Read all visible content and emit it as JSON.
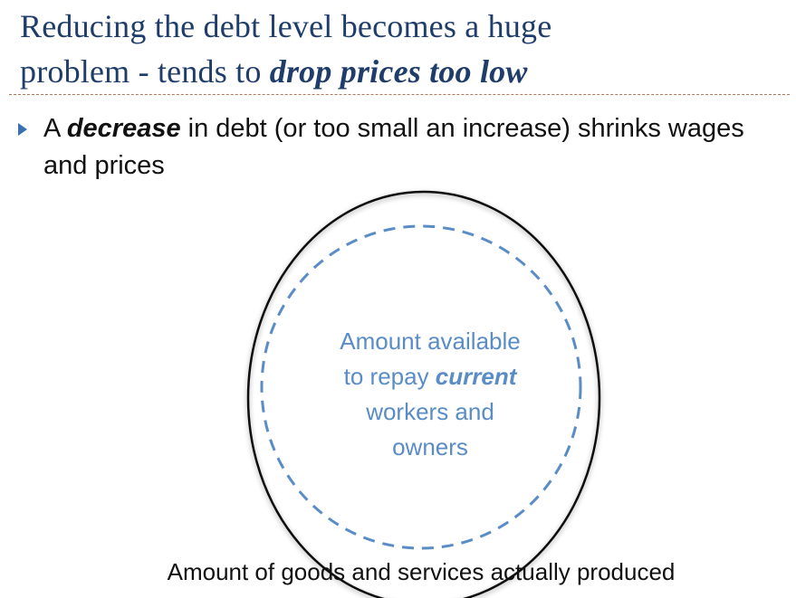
{
  "title": {
    "line1": "Reducing the debt level becomes a huge",
    "line2_plain": "problem - tends to ",
    "line2_emphasis": "drop prices too low"
  },
  "bullet": {
    "prefix": "A ",
    "emphasis": "decrease",
    "suffix": " in debt (or too small an increase) shrinks wages and prices"
  },
  "diagram": {
    "inner_circle_label": {
      "line1": "Amount available",
      "line2_plain": "to repay ",
      "line2_emphasis": "current",
      "line3": "workers and",
      "line4": "owners"
    },
    "outer_circle_label": "Amount of goods and services actually produced",
    "colors": {
      "title": "#1f3d6b",
      "inner_circle": "#5a8cc6",
      "outer_circle": "#111111",
      "bullet_arrow": "#3a6fb0"
    }
  }
}
